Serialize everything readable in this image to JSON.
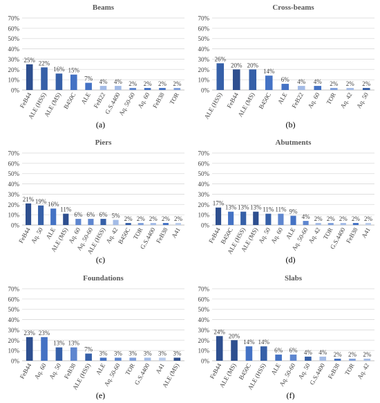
{
  "colors": {
    "bar_palette": [
      "#2e4f8f",
      "#3660a8",
      "#4472c4",
      "#5e86cf",
      "#7f9fdb",
      "#a3bbe6",
      "#b9cbeb"
    ],
    "grid": "#d9d9d9",
    "text": "#404040",
    "title": "#595959"
  },
  "chart_data": [
    {
      "type": "bar",
      "title": "Beams",
      "panel_label": "(a)",
      "categories": [
        "FeB44",
        "ALE (HSS)",
        "ALE (MS)",
        "B450C",
        "ALE",
        "FeB22",
        "G.S.4400",
        "Aq. 50-60",
        "Aq. 60",
        "FeB38",
        "TOR"
      ],
      "values": [
        25,
        22,
        16,
        15,
        7,
        4,
        4,
        2,
        2,
        2,
        2
      ],
      "value_labels": [
        "25%",
        "22%",
        "16%",
        "15%",
        "7%",
        "4%",
        "4%",
        "2%",
        "2%",
        "2%",
        "2%"
      ],
      "color_index": [
        0,
        1,
        1,
        2,
        2,
        5,
        5,
        3,
        2,
        2,
        4
      ],
      "ylim": [
        0,
        70
      ],
      "yticks": [
        "0%",
        "10%",
        "20%",
        "30%",
        "40%",
        "50%",
        "60%",
        "70%"
      ],
      "grid": true
    },
    {
      "type": "bar",
      "title": "Cross-beams",
      "panel_label": "(b)",
      "categories": [
        "ALE (HSS)",
        "FeB44",
        "ALE (MS)",
        "B450C",
        "ALE",
        "FeB22",
        "Aq. 60",
        "TOR",
        "Aq. 42",
        "Aq. 50"
      ],
      "values": [
        26,
        20,
        20,
        14,
        6,
        4,
        4,
        2,
        2,
        2
      ],
      "value_labels": [
        "26%",
        "20%",
        "20%",
        "14%",
        "6%",
        "4%",
        "4%",
        "2%",
        "2%",
        "2%"
      ],
      "color_index": [
        1,
        0,
        1,
        2,
        2,
        5,
        2,
        4,
        5,
        1
      ],
      "ylim": [
        0,
        70
      ],
      "yticks": [
        "0%",
        "10%",
        "20%",
        "30%",
        "40%",
        "50%",
        "60%",
        "70%"
      ],
      "grid": true
    },
    {
      "type": "bar",
      "title": "Piers",
      "panel_label": "(c)",
      "categories": [
        "FeB44",
        "Aq. 50",
        "ALE",
        "ALE (MS)",
        "Aq. 60",
        "Aq. 50-60",
        "ALE (HSS)",
        "Aq. 42",
        "B450C",
        "TOR",
        "G.S.4400",
        "FeB38",
        "A41"
      ],
      "values": [
        21,
        19,
        16,
        11,
        6,
        6,
        6,
        5,
        2,
        2,
        2,
        2,
        2
      ],
      "value_labels": [
        "21%",
        "19%",
        "16%",
        "11%",
        "6%",
        "6%",
        "6%",
        "5%",
        "2%",
        "2%",
        "2%",
        "2%",
        "2%"
      ],
      "color_index": [
        0,
        1,
        2,
        0,
        3,
        3,
        1,
        5,
        1,
        4,
        5,
        2,
        6
      ],
      "ylim": [
        0,
        70
      ],
      "yticks": [
        "0%",
        "10%",
        "20%",
        "30%",
        "40%",
        "50%",
        "60%",
        "70%"
      ],
      "grid": true
    },
    {
      "type": "bar",
      "title": "Abutments",
      "panel_label": "(d)",
      "categories": [
        "FeB44",
        "B450C",
        "ALE (HSS)",
        "ALE (MS)",
        "Aq. 50",
        "Aq. 60",
        "ALE",
        "Aq. 50-60",
        "Aq. 42",
        "TOR",
        "G.S.4400",
        "FeB38",
        "A41"
      ],
      "values": [
        17,
        13,
        13,
        13,
        11,
        11,
        9,
        4,
        2,
        2,
        2,
        2,
        2
      ],
      "value_labels": [
        "17%",
        "13%",
        "13%",
        "13%",
        "11%",
        "11%",
        "9%",
        "4%",
        "2%",
        "2%",
        "2%",
        "2%",
        "2%"
      ],
      "color_index": [
        0,
        2,
        1,
        0,
        1,
        3,
        2,
        3,
        5,
        4,
        5,
        2,
        6
      ],
      "ylim": [
        0,
        70
      ],
      "yticks": [
        "0%",
        "10%",
        "20%",
        "30%",
        "40%",
        "50%",
        "60%",
        "70%"
      ],
      "grid": true
    },
    {
      "type": "bar",
      "title": "Foundations",
      "panel_label": "(e)",
      "categories": [
        "FeB44",
        "Aq. 60",
        "Aq. 50",
        "FeB38",
        "ALE (HSS)",
        "ALE",
        "Aq. 50-60",
        "TOR",
        "G.S.4400",
        "A41",
        "ALE (MS)"
      ],
      "values": [
        23,
        23,
        13,
        13,
        7,
        3,
        3,
        3,
        3,
        3,
        3
      ],
      "value_labels": [
        "23%",
        "23%",
        "13%",
        "13%",
        "7%",
        "3%",
        "3%",
        "3%",
        "3%",
        "3%",
        "3%"
      ],
      "color_index": [
        0,
        2,
        1,
        3,
        1,
        2,
        3,
        4,
        5,
        6,
        0
      ],
      "ylim": [
        0,
        70
      ],
      "yticks": [
        "0%",
        "10%",
        "20%",
        "30%",
        "40%",
        "50%",
        "60%",
        "70%"
      ],
      "grid": true
    },
    {
      "type": "bar",
      "title": "Slabs",
      "panel_label": "(f)",
      "categories": [
        "FeB44",
        "ALE (MS)",
        "B450C",
        "ALE (HSS)",
        "ALE",
        "Aq. 50-60",
        "Aq. 50",
        "G.S.4400",
        "FeB38",
        "TOR",
        "Aq. 42"
      ],
      "values": [
        24,
        20,
        14,
        14,
        6,
        6,
        4,
        4,
        2,
        2,
        2
      ],
      "value_labels": [
        "24%",
        "20%",
        "14%",
        "14%",
        "6%",
        "6%",
        "4%",
        "4%",
        "2%",
        "2%",
        "2%"
      ],
      "color_index": [
        0,
        0,
        2,
        1,
        2,
        3,
        1,
        5,
        2,
        4,
        5
      ],
      "ylim": [
        0,
        70
      ],
      "yticks": [
        "0%",
        "10%",
        "20%",
        "30%",
        "40%",
        "50%",
        "60%",
        "70%"
      ],
      "grid": true
    }
  ]
}
